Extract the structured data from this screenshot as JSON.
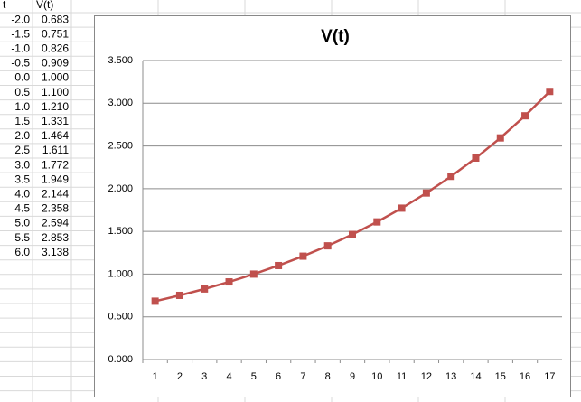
{
  "table": {
    "header": [
      "t",
      "V(t)"
    ],
    "rows": [
      [
        "-2.0",
        "0.683"
      ],
      [
        "-1.5",
        "0.751"
      ],
      [
        "-1.0",
        "0.826"
      ],
      [
        "-0.5",
        "0.909"
      ],
      [
        "0.0",
        "1.000"
      ],
      [
        "0.5",
        "1.100"
      ],
      [
        "1.0",
        "1.210"
      ],
      [
        "1.5",
        "1.331"
      ],
      [
        "2.0",
        "1.464"
      ],
      [
        "2.5",
        "1.611"
      ],
      [
        "3.0",
        "1.772"
      ],
      [
        "3.5",
        "1.949"
      ],
      [
        "4.0",
        "2.144"
      ],
      [
        "4.5",
        "2.358"
      ],
      [
        "5.0",
        "2.594"
      ],
      [
        "5.5",
        "2.853"
      ],
      [
        "6.0",
        "3.138"
      ]
    ]
  },
  "chart_data": {
    "type": "line",
    "title": "V(t)",
    "categories": [
      1,
      2,
      3,
      4,
      5,
      6,
      7,
      8,
      9,
      10,
      11,
      12,
      13,
      14,
      15,
      16,
      17
    ],
    "series": [
      {
        "name": "V(t)",
        "color": "#c0504d",
        "values": [
          0.683,
          0.751,
          0.826,
          0.909,
          1.0,
          1.1,
          1.21,
          1.331,
          1.464,
          1.611,
          1.772,
          1.949,
          2.144,
          2.358,
          2.594,
          2.853,
          3.138
        ]
      }
    ],
    "ylim": [
      0,
      3.5
    ],
    "yticks": [
      {
        "value": 0,
        "label": "0.000"
      },
      {
        "value": 0.5,
        "label": "0.500"
      },
      {
        "value": 1,
        "label": "1.000"
      },
      {
        "value": 1.5,
        "label": "1.500"
      },
      {
        "value": 2,
        "label": "2.000"
      },
      {
        "value": 2.5,
        "label": "2.500"
      },
      {
        "value": 3,
        "label": "3.000"
      },
      {
        "value": 3.5,
        "label": "3.500"
      }
    ],
    "grid": true
  }
}
